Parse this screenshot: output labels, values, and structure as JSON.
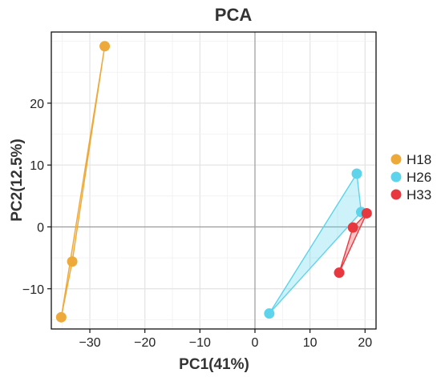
{
  "chart_data": {
    "type": "scatter",
    "title": "PCA",
    "xlabel": "PC1(41%)",
    "ylabel": "PC2(12.5%)",
    "xlim": [
      -37,
      22
    ],
    "ylim": [
      -16.5,
      31.5
    ],
    "x_ticks": [
      -30,
      -20,
      -10,
      0,
      10,
      20
    ],
    "x_tick_labels": [
      "−30",
      "−20",
      "−10",
      "0",
      "10",
      "20"
    ],
    "y_ticks": [
      -10,
      0,
      10,
      20
    ],
    "y_tick_labels": [
      "−10",
      "0",
      "10",
      "20"
    ],
    "grid": true,
    "zero_lines": true,
    "legend_position": "right",
    "series": [
      {
        "name": "H18",
        "color": "#EDAA3B",
        "points": [
          [
            -27.3,
            29.2
          ],
          [
            -33.2,
            -5.6
          ],
          [
            -35.2,
            -14.6
          ]
        ],
        "hull": [
          [
            -27.3,
            29.2
          ],
          [
            -33.2,
            -5.6
          ],
          [
            -35.2,
            -14.6
          ]
        ]
      },
      {
        "name": "H26",
        "color": "#5DD3EC",
        "points": [
          [
            18.5,
            8.6
          ],
          [
            19.3,
            2.4
          ],
          [
            2.6,
            -14.0
          ]
        ],
        "hull": [
          [
            18.5,
            8.6
          ],
          [
            19.3,
            2.4
          ],
          [
            2.6,
            -14.0
          ]
        ]
      },
      {
        "name": "H33",
        "color": "#E8383F",
        "points": [
          [
            20.3,
            2.2
          ],
          [
            17.8,
            -0.1
          ],
          [
            15.3,
            -7.4
          ]
        ],
        "hull": [
          [
            20.3,
            2.2
          ],
          [
            17.8,
            -0.1
          ],
          [
            15.3,
            -7.4
          ]
        ]
      }
    ]
  }
}
